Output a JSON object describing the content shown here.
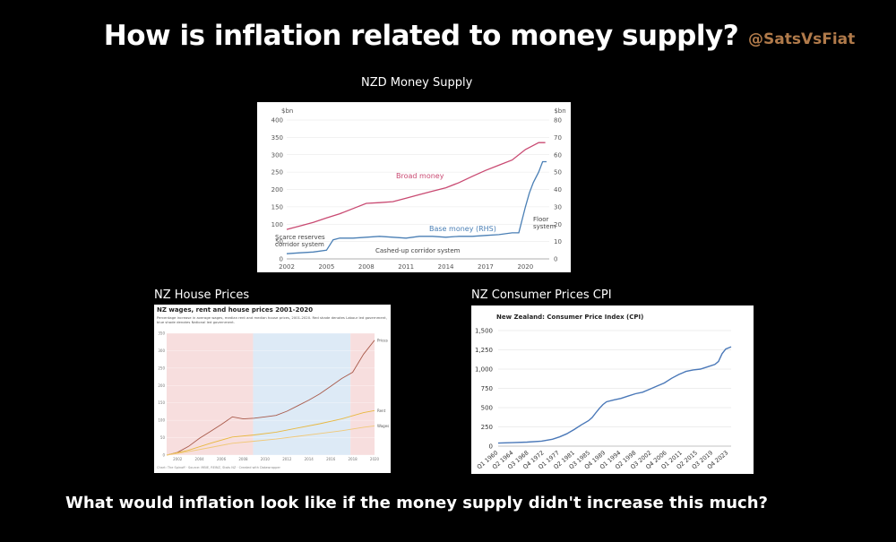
{
  "header": {
    "title": "How is inflation related to money supply?",
    "handle": "@SatsVsFiat"
  },
  "footer": {
    "question": "What would inflation look like if the money supply didn't increase this much?"
  },
  "chart_data": [
    {
      "type": "line",
      "caption": "NZD Money Supply",
      "left_unit": "$bn",
      "right_unit": "$bn",
      "left_ticks": [
        "400",
        "350",
        "300",
        "250",
        "200",
        "150",
        "100",
        "50",
        "0"
      ],
      "right_ticks": [
        "80",
        "70",
        "60",
        "50",
        "40",
        "30",
        "20",
        "10",
        "0"
      ],
      "x_ticks": [
        "2002",
        "2005",
        "2008",
        "2011",
        "2014",
        "2017",
        "2020"
      ],
      "ylim_left": [
        0,
        400
      ],
      "ylim_right": [
        0,
        80
      ],
      "xlim": [
        2002,
        2021.8
      ],
      "series": [
        {
          "name": "Broad money",
          "axis": "left",
          "color": "#c94a72",
          "x": [
            2002,
            2003,
            2004,
            2005,
            2006,
            2007,
            2008,
            2009,
            2010,
            2011,
            2012,
            2013,
            2014,
            2015,
            2016,
            2017,
            2018,
            2019,
            2020,
            2020.5,
            2021,
            2021.5
          ],
          "values": [
            85,
            95,
            105,
            118,
            130,
            145,
            160,
            162,
            165,
            175,
            185,
            195,
            205,
            220,
            238,
            255,
            270,
            285,
            315,
            325,
            335,
            335
          ]
        },
        {
          "name": "Base money (RHS)",
          "axis": "right",
          "color": "#4a7fb5",
          "x": [
            2002,
            2003,
            2004,
            2005,
            2005.5,
            2006,
            2007,
            2008,
            2009,
            2010,
            2011,
            2012,
            2013,
            2014,
            2015,
            2016,
            2017,
            2018,
            2019,
            2019.5,
            2020,
            2020.3,
            2020.6,
            2021,
            2021.3,
            2021.6
          ],
          "values": [
            3,
            3.5,
            4,
            5,
            11,
            12,
            12,
            12.5,
            13,
            12.5,
            12,
            13,
            13,
            12.5,
            13,
            13,
            13.5,
            14,
            15,
            15,
            30,
            38,
            44,
            50,
            56,
            56
          ]
        }
      ],
      "annotations": [
        "Broad money",
        "Base money (RHS)",
        "Scarce reserves corridor system",
        "Cashed-up corridor system",
        "Floor system"
      ]
    },
    {
      "type": "line",
      "caption": "NZ House Prices",
      "title": "NZ wages, rent and house prices 2001-2020",
      "subtitle": "Percentage increase in average wages, median rent and median house prices, 2001-2020. Red shade denotes Labour led government, blue shade denotes National led government.",
      "source": "Chart: The Spinoff · Source: MBIE, REINZ, Stats NZ · Created with Datawrapper",
      "y_ticks": [
        "350",
        "300",
        "250",
        "200",
        "150",
        "100",
        "50",
        "0"
      ],
      "x_ticks": [
        "2002",
        "2004",
        "2006",
        "2008",
        "2010",
        "2012",
        "2014",
        "2016",
        "2018",
        "2020"
      ],
      "ylim": [
        0,
        350
      ],
      "xlim": [
        2001,
        2020
      ],
      "shading": [
        {
          "from": 2001,
          "to": 2008.9,
          "color": "#f7dede"
        },
        {
          "from": 2008.9,
          "to": 2017.8,
          "color": "#ddeaf6"
        },
        {
          "from": 2017.8,
          "to": 2020,
          "color": "#f7dede"
        }
      ],
      "series": [
        {
          "name": "Prices",
          "color": "#a85a4a",
          "x": [
            2001,
            2002,
            2003,
            2004,
            2005,
            2006,
            2007,
            2008,
            2009,
            2010,
            2011,
            2012,
            2013,
            2014,
            2015,
            2016,
            2017,
            2018,
            2019,
            2020
          ],
          "values": [
            0,
            8,
            25,
            48,
            68,
            88,
            110,
            104,
            106,
            110,
            114,
            126,
            142,
            158,
            176,
            198,
            220,
            238,
            290,
            330
          ]
        },
        {
          "name": "Rent",
          "color": "#e8b840",
          "x": [
            2001,
            2003,
            2005,
            2007,
            2009,
            2011,
            2013,
            2015,
            2017,
            2019,
            2020
          ],
          "values": [
            0,
            14,
            34,
            52,
            58,
            66,
            78,
            90,
            104,
            122,
            128
          ]
        },
        {
          "name": "Wages",
          "color": "#f0c878",
          "x": [
            2001,
            2003,
            2005,
            2007,
            2009,
            2011,
            2013,
            2015,
            2017,
            2019,
            2020
          ],
          "values": [
            0,
            10,
            22,
            34,
            40,
            46,
            54,
            62,
            70,
            80,
            84
          ]
        }
      ]
    },
    {
      "type": "line",
      "caption": "NZ Consumer Prices CPI",
      "title": "New Zealand: Consumer Price Index (CPI)",
      "y_ticks": [
        "1,500",
        "1,250",
        "1,000",
        "750",
        "500",
        "250",
        "0"
      ],
      "x_ticks": [
        "Q1 1960",
        "Q2 1964",
        "Q3 1968",
        "Q4 1972",
        "Q1 1977",
        "Q2 1981",
        "Q3 1985",
        "Q4 1989",
        "Q1 1994",
        "Q2 1998",
        "Q3 2002",
        "Q4 2006",
        "Q1 2011",
        "Q2 2015",
        "Q3 2019",
        "Q4 2023"
      ],
      "ylim": [
        0,
        1500
      ],
      "xlim": [
        1960,
        2024.5
      ],
      "series": [
        {
          "name": "CPI",
          "color": "#4a78b8",
          "x": [
            1960,
            1964,
            1968,
            1972,
            1975,
            1977,
            1979,
            1981,
            1983,
            1985,
            1986,
            1987,
            1988,
            1989,
            1990,
            1992,
            1994,
            1996,
            1998,
            2000,
            2002,
            2004,
            2006,
            2008,
            2010,
            2012,
            2014,
            2016,
            2018,
            2020,
            2021,
            2022,
            2023,
            2024.5
          ],
          "values": [
            40,
            45,
            52,
            65,
            90,
            120,
            160,
            215,
            275,
            330,
            370,
            430,
            490,
            540,
            575,
            600,
            620,
            650,
            680,
            700,
            740,
            780,
            820,
            880,
            930,
            970,
            990,
            1000,
            1030,
            1060,
            1100,
            1200,
            1260,
            1290
          ]
        }
      ]
    }
  ]
}
